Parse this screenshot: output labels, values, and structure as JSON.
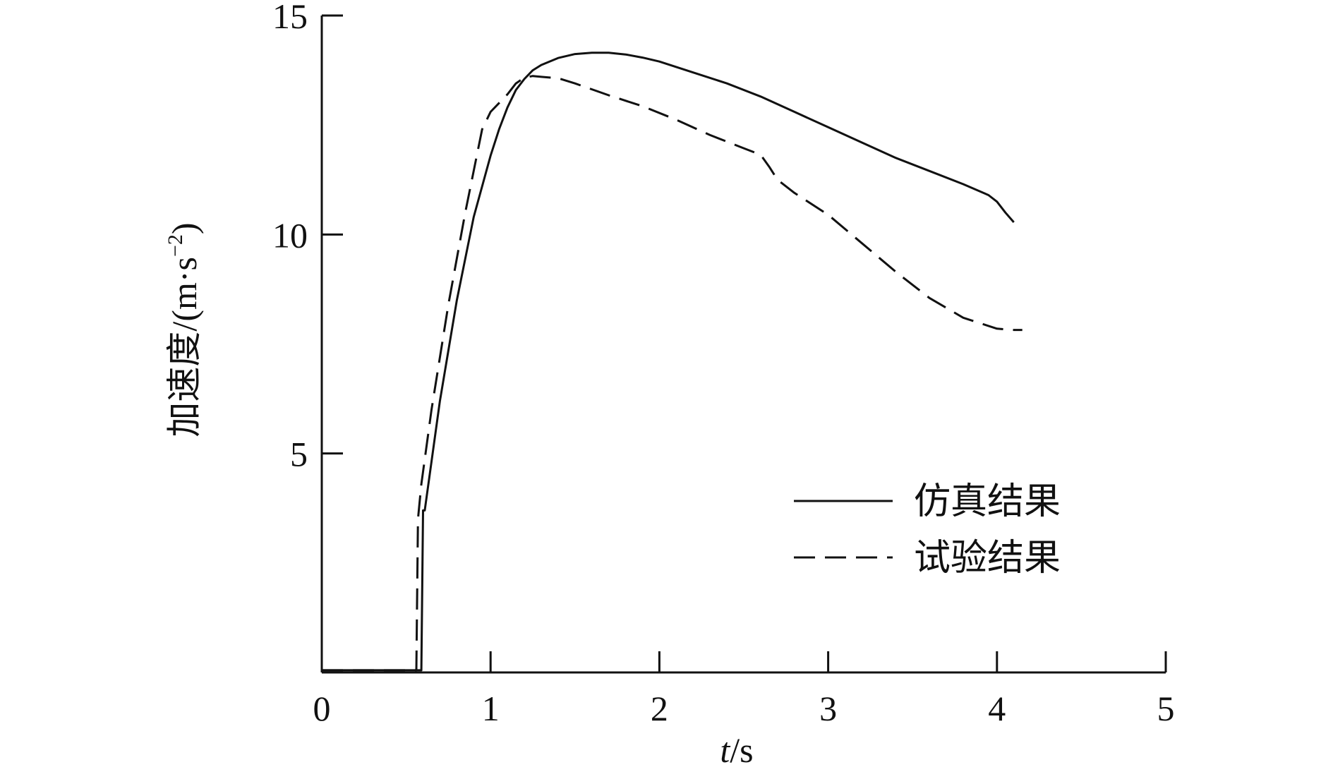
{
  "chart_data": {
    "type": "line",
    "title": "",
    "xlabel_italic": "t",
    "xlabel_unit": "/s",
    "ylabel": "加速度/(m·s",
    "ylabel_sup": "−2",
    "ylabel_close": ")",
    "xlim": [
      0,
      5
    ],
    "ylim": [
      0,
      15
    ],
    "xticks": [
      0,
      1,
      2,
      3,
      4,
      5
    ],
    "xtick_labels": [
      "0",
      "1",
      "2",
      "3",
      "4",
      "5"
    ],
    "yticks": [
      5,
      10,
      15
    ],
    "ytick_labels": [
      "5",
      "10",
      "15"
    ],
    "grid": false,
    "legend_position": "bottom-right",
    "series": [
      {
        "name": "仿真结果",
        "style": "solid",
        "color": "#111111",
        "x": [
          0,
          0.57,
          0.59,
          0.6,
          0.61,
          0.7,
          0.8,
          0.9,
          1.0,
          1.05,
          1.1,
          1.15,
          1.2,
          1.25,
          1.3,
          1.4,
          1.5,
          1.6,
          1.7,
          1.8,
          1.9,
          2.0,
          2.2,
          2.4,
          2.6,
          2.8,
          3.0,
          3.2,
          3.4,
          3.6,
          3.8,
          3.95,
          4.0,
          4.05,
          4.1
        ],
        "y": [
          0.05,
          0.05,
          0.05,
          3.7,
          3.7,
          6.2,
          8.5,
          10.4,
          11.8,
          12.4,
          12.9,
          13.3,
          13.55,
          13.75,
          13.87,
          14.03,
          14.12,
          14.15,
          14.15,
          14.11,
          14.04,
          13.95,
          13.7,
          13.45,
          13.15,
          12.8,
          12.45,
          12.1,
          11.75,
          11.45,
          11.15,
          10.9,
          10.75,
          10.5,
          10.28
        ]
      },
      {
        "name": "试验结果",
        "style": "dashed",
        "color": "#111111",
        "x": [
          0,
          0.56,
          0.57,
          0.59,
          0.65,
          0.75,
          0.85,
          0.95,
          1.0,
          1.05,
          1.1,
          1.15,
          1.2,
          1.25,
          1.3,
          1.4,
          1.5,
          1.7,
          1.9,
          2.1,
          2.3,
          2.5,
          2.6,
          2.65,
          2.7,
          2.8,
          3.0,
          3.2,
          3.4,
          3.6,
          3.8,
          4.0,
          4.1,
          4.15
        ],
        "y": [
          0.05,
          0.05,
          3.5,
          4.3,
          6.0,
          8.4,
          10.5,
          12.4,
          12.8,
          13.0,
          13.2,
          13.45,
          13.58,
          13.62,
          13.6,
          13.57,
          13.45,
          13.18,
          12.93,
          12.62,
          12.27,
          11.97,
          11.82,
          11.55,
          11.25,
          10.95,
          10.45,
          9.8,
          9.15,
          8.55,
          8.1,
          7.85,
          7.82,
          7.82
        ]
      }
    ]
  }
}
